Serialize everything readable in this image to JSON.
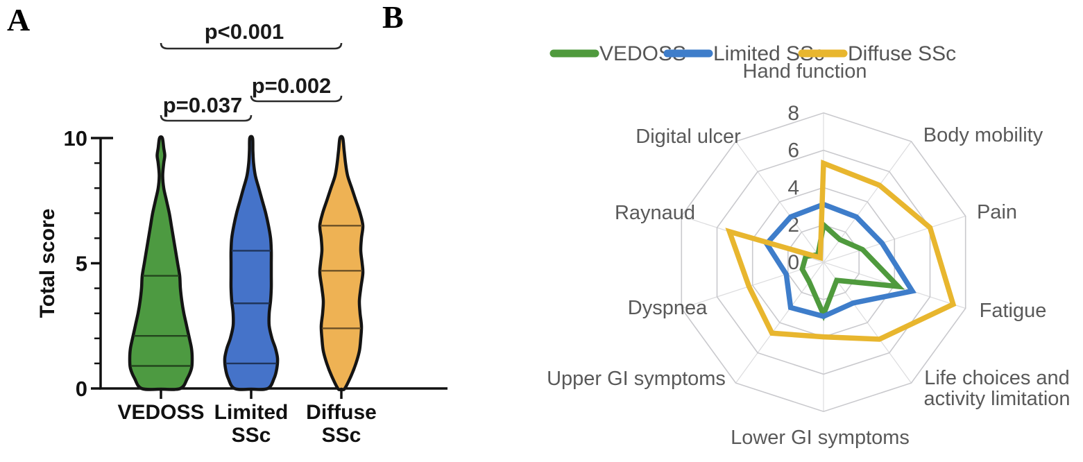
{
  "figure": {
    "panel_a_label": "A",
    "panel_b_label": "B"
  },
  "colors": {
    "violin_green": "#4d9a41",
    "violin_blue": "#4573c9",
    "violin_orange": "#eeb254",
    "radar_green": "#4f9a3d",
    "radar_blue": "#3e7dca",
    "radar_yellow": "#e8b62e",
    "grid_gray": "#c9c9cd",
    "label_gray": "#595959",
    "axis_black": "#111111"
  },
  "chart_data": [
    {
      "panel": "A",
      "type": "area",
      "subtype": "violin",
      "title": "",
      "xlabel": "",
      "ylabel": "Total score",
      "ylim": [
        0,
        10
      ],
      "y_major_ticks": [
        0,
        5,
        10
      ],
      "y_minor_ticks": [
        1,
        2,
        3,
        4,
        6,
        7,
        8,
        9
      ],
      "grid": false,
      "categories": [
        "VEDOSS",
        "Limited SSc",
        "Diffuse SSc"
      ],
      "series": [
        {
          "name": "VEDOSS",
          "label_lines": [
            "VEDOSS"
          ],
          "color": "#4d9a41",
          "quartiles": {
            "q1": 0.9,
            "median": 2.1,
            "q3": 4.5
          },
          "range": [
            0,
            10
          ],
          "density_profile": [
            [
              0,
              28
            ],
            [
              0.4,
              38
            ],
            [
              0.8,
              44
            ],
            [
              1.2,
              45
            ],
            [
              1.6,
              44
            ],
            [
              2,
              41
            ],
            [
              2.5,
              37
            ],
            [
              3,
              33
            ],
            [
              3.5,
              30
            ],
            [
              4,
              28
            ],
            [
              4.5,
              27
            ],
            [
              5,
              24
            ],
            [
              5.5,
              21
            ],
            [
              6,
              18
            ],
            [
              6.5,
              15
            ],
            [
              7,
              12
            ],
            [
              7.5,
              8
            ],
            [
              8,
              4
            ],
            [
              8.5,
              2.5
            ],
            [
              9,
              4
            ],
            [
              9.3,
              5.5
            ],
            [
              9.6,
              4
            ],
            [
              10,
              2
            ]
          ]
        },
        {
          "name": "Limited SSc",
          "label_lines": [
            "Limited",
            "SSc"
          ],
          "color": "#4573c9",
          "quartiles": {
            "q1": 1.0,
            "median": 3.4,
            "q3": 5.5
          },
          "range": [
            0,
            10
          ],
          "density_profile": [
            [
              0,
              24
            ],
            [
              0.4,
              33
            ],
            [
              0.8,
              37
            ],
            [
              1.2,
              38
            ],
            [
              1.6,
              35
            ],
            [
              2,
              30
            ],
            [
              2.5,
              26
            ],
            [
              3,
              26
            ],
            [
              3.5,
              28
            ],
            [
              4,
              29
            ],
            [
              4.5,
              29
            ],
            [
              5,
              29
            ],
            [
              5.5,
              29
            ],
            [
              6,
              28
            ],
            [
              6.5,
              25
            ],
            [
              7,
              21
            ],
            [
              7.5,
              16
            ],
            [
              8,
              11
            ],
            [
              8.5,
              6
            ],
            [
              9,
              3.5
            ],
            [
              9.5,
              2.5
            ],
            [
              10,
              2
            ]
          ]
        },
        {
          "name": "Diffuse SSc",
          "label_lines": [
            "Diffuse",
            "SSc"
          ],
          "color": "#eeb254",
          "quartiles": {
            "q1": 2.4,
            "median": 4.7,
            "q3": 6.5
          },
          "range": [
            0,
            10
          ],
          "density_profile": [
            [
              0,
              5
            ],
            [
              0.5,
              14
            ],
            [
              1,
              21
            ],
            [
              1.5,
              26
            ],
            [
              2,
              28
            ],
            [
              2.5,
              29
            ],
            [
              3,
              27
            ],
            [
              3.5,
              26
            ],
            [
              4,
              28
            ],
            [
              4.6,
              31
            ],
            [
              5,
              30
            ],
            [
              5.5,
              28
            ],
            [
              6,
              29
            ],
            [
              6.5,
              31
            ],
            [
              7,
              27
            ],
            [
              7.5,
              21
            ],
            [
              8,
              15
            ],
            [
              8.5,
              9
            ],
            [
              9,
              6
            ],
            [
              9.5,
              4
            ],
            [
              10,
              2
            ]
          ]
        }
      ],
      "comparisons": [
        {
          "groups": [
            "VEDOSS",
            "Limited SSc"
          ],
          "label": "p=0.037"
        },
        {
          "groups": [
            "Limited SSc",
            "Diffuse SSc"
          ],
          "label": "p=0.002"
        },
        {
          "groups": [
            "VEDOSS",
            "Diffuse SSc"
          ],
          "label": "p<0.001"
        }
      ]
    },
    {
      "panel": "B",
      "type": "line",
      "subtype": "radar",
      "title": "",
      "rlim": [
        0,
        8
      ],
      "r_ticks": [
        0,
        2,
        4,
        6,
        8
      ],
      "grid": true,
      "legend_position": "top",
      "categories": [
        "Hand function",
        "Body mobility",
        "Pain",
        "Fatigue",
        "Life choices and activity limitation",
        "Lower GI symptoms",
        "Upper GI symptoms",
        "Dyspnea",
        "Raynaud",
        "Digital ulcer"
      ],
      "series": [
        {
          "name": "VEDOSS",
          "color": "#4f9a3d",
          "values": [
            2.0,
            1.5,
            2.2,
            4.2,
            1.2,
            2.8,
            1.3,
            1.2,
            1.0,
            0.5
          ]
        },
        {
          "name": "Limited SSc",
          "color": "#3e7dca",
          "values": [
            3.1,
            3.0,
            3.3,
            5.0,
            2.7,
            2.9,
            3.0,
            2.1,
            3.2,
            3.0
          ]
        },
        {
          "name": "Diffuse SSc",
          "color": "#e8b62e",
          "values": [
            5.3,
            5.1,
            6.0,
            7.3,
            5.1,
            4.0,
            4.7,
            4.2,
            5.3,
            0.3
          ]
        }
      ]
    }
  ]
}
